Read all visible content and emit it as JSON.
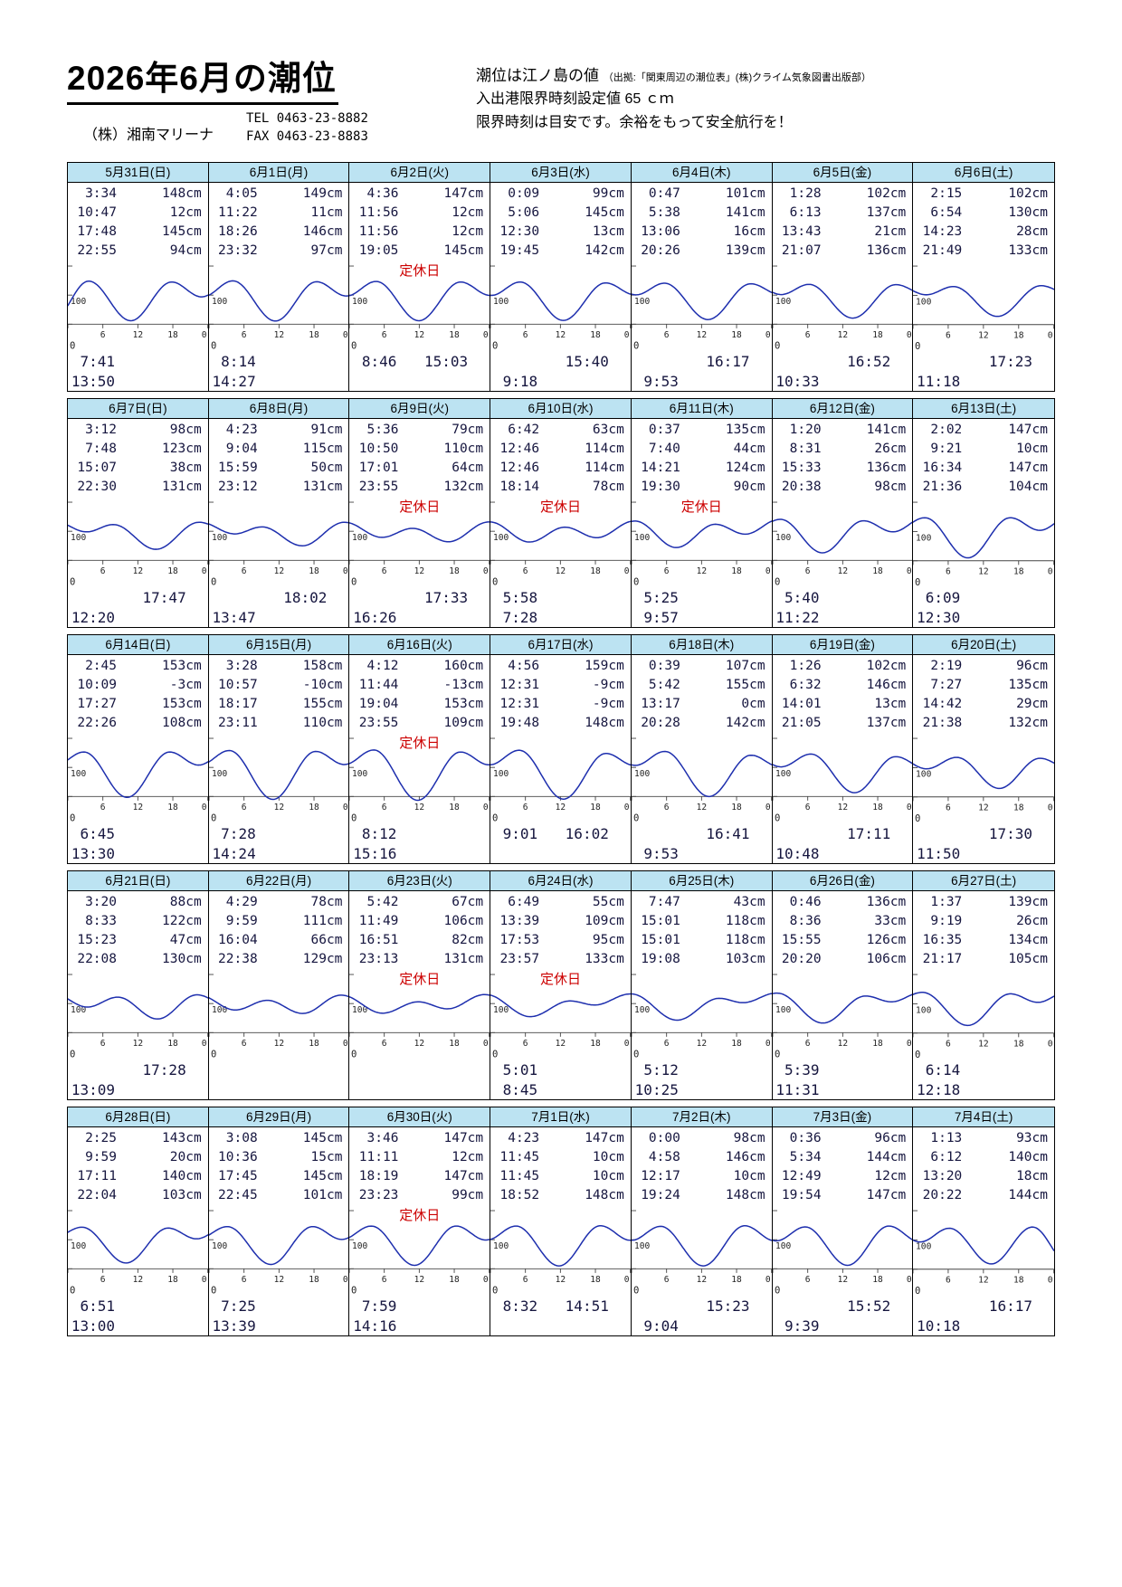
{
  "page": {
    "title": "2026年6月の潮位",
    "company": "（株）湘南マリーナ",
    "tel": "TEL 0463-23-8882",
    "fax": "FAX 0463-23-8883",
    "note1": "潮位は江ノ島の値",
    "note1_sub": "（出拠:「関東周辺の潮位表」(株)クライム気象図書出版部）",
    "note2": "入出港限界時刻設定値 65 ｃｍ",
    "note3": "限界時刻は目安です。余裕をもって安全航行を！",
    "holiday_label": "定休日",
    "axis": {
      "y100": "100",
      "y0": "0",
      "xticks": [
        "6",
        "12",
        "18",
        "0"
      ]
    }
  },
  "colors": {
    "header_bg": "#bce3f2",
    "curve": "#1e2fae",
    "holiday": "#cc0000",
    "text": "#16163f"
  },
  "weeks": [
    [
      {
        "date": "5月31日(日)",
        "holiday": false,
        "tides": [
          [
            "3:34",
            "148cm"
          ],
          [
            "10:47",
            "12cm"
          ],
          [
            "17:48",
            "145cm"
          ],
          [
            "22:55",
            "94cm"
          ]
        ],
        "limits": [
          [
            "7:41",
            ""
          ],
          [
            "13:50",
            ""
          ]
        ]
      },
      {
        "date": "6月1日(月)",
        "holiday": false,
        "tides": [
          [
            "4:05",
            "149cm"
          ],
          [
            "11:22",
            "11cm"
          ],
          [
            "18:26",
            "146cm"
          ],
          [
            "23:32",
            "97cm"
          ]
        ],
        "limits": [
          [
            "8:14",
            ""
          ],
          [
            "14:27",
            ""
          ]
        ]
      },
      {
        "date": "6月2日(火)",
        "holiday": true,
        "tides": [
          [
            "4:36",
            "147cm"
          ],
          [
            "11:56",
            "12cm"
          ],
          [
            "11:56",
            "12cm"
          ],
          [
            "19:05",
            "145cm"
          ]
        ],
        "limits": [
          [
            "8:46",
            "15:03"
          ],
          [
            "",
            ""
          ]
        ]
      },
      {
        "date": "6月3日(水)",
        "holiday": false,
        "tides": [
          [
            "0:09",
            "99cm"
          ],
          [
            "5:06",
            "145cm"
          ],
          [
            "12:30",
            "13cm"
          ],
          [
            "19:45",
            "142cm"
          ]
        ],
        "limits": [
          [
            "",
            "15:40"
          ],
          [
            "9:18",
            ""
          ]
        ]
      },
      {
        "date": "6月4日(木)",
        "holiday": false,
        "tides": [
          [
            "0:47",
            "101cm"
          ],
          [
            "5:38",
            "141cm"
          ],
          [
            "13:06",
            "16cm"
          ],
          [
            "20:26",
            "139cm"
          ]
        ],
        "limits": [
          [
            "",
            "16:17"
          ],
          [
            "9:53",
            ""
          ]
        ]
      },
      {
        "date": "6月5日(金)",
        "holiday": false,
        "tides": [
          [
            "1:28",
            "102cm"
          ],
          [
            "6:13",
            "137cm"
          ],
          [
            "13:43",
            "21cm"
          ],
          [
            "21:07",
            "136cm"
          ]
        ],
        "limits": [
          [
            "",
            "16:52"
          ],
          [
            "10:33",
            ""
          ]
        ]
      },
      {
        "date": "6月6日(土)",
        "holiday": false,
        "tides": [
          [
            "2:15",
            "102cm"
          ],
          [
            "6:54",
            "130cm"
          ],
          [
            "14:23",
            "28cm"
          ],
          [
            "21:49",
            "133cm"
          ]
        ],
        "limits": [
          [
            "",
            "17:23"
          ],
          [
            "11:18",
            ""
          ]
        ]
      }
    ],
    [
      {
        "date": "6月7日(日)",
        "holiday": false,
        "tides": [
          [
            "3:12",
            "98cm"
          ],
          [
            "7:48",
            "123cm"
          ],
          [
            "15:07",
            "38cm"
          ],
          [
            "22:30",
            "131cm"
          ]
        ],
        "limits": [
          [
            "",
            "17:47"
          ],
          [
            "12:20",
            ""
          ]
        ]
      },
      {
        "date": "6月8日(月)",
        "holiday": false,
        "tides": [
          [
            "4:23",
            "91cm"
          ],
          [
            "9:04",
            "115cm"
          ],
          [
            "15:59",
            "50cm"
          ],
          [
            "23:12",
            "131cm"
          ]
        ],
        "limits": [
          [
            "",
            "18:02"
          ],
          [
            "13:47",
            ""
          ]
        ]
      },
      {
        "date": "6月9日(火)",
        "holiday": true,
        "tides": [
          [
            "5:36",
            "79cm"
          ],
          [
            "10:50",
            "110cm"
          ],
          [
            "17:01",
            "64cm"
          ],
          [
            "23:55",
            "132cm"
          ]
        ],
        "limits": [
          [
            "",
            "17:33"
          ],
          [
            "16:26",
            ""
          ]
        ]
      },
      {
        "date": "6月10日(水)",
        "holiday": true,
        "tides": [
          [
            "6:42",
            "63cm"
          ],
          [
            "12:46",
            "114cm"
          ],
          [
            "12:46",
            "114cm"
          ],
          [
            "18:14",
            "78cm"
          ]
        ],
        "limits": [
          [
            "5:58",
            ""
          ],
          [
            "7:28",
            ""
          ]
        ]
      },
      {
        "date": "6月11日(木)",
        "holiday": true,
        "tides": [
          [
            "0:37",
            "135cm"
          ],
          [
            "7:40",
            "44cm"
          ],
          [
            "14:21",
            "124cm"
          ],
          [
            "19:30",
            "90cm"
          ]
        ],
        "limits": [
          [
            "5:25",
            ""
          ],
          [
            "9:57",
            ""
          ]
        ]
      },
      {
        "date": "6月12日(金)",
        "holiday": false,
        "tides": [
          [
            "1:20",
            "141cm"
          ],
          [
            "8:31",
            "26cm"
          ],
          [
            "15:33",
            "136cm"
          ],
          [
            "20:38",
            "98cm"
          ]
        ],
        "limits": [
          [
            "5:40",
            ""
          ],
          [
            "11:22",
            ""
          ]
        ]
      },
      {
        "date": "6月13日(土)",
        "holiday": false,
        "tides": [
          [
            "2:02",
            "147cm"
          ],
          [
            "9:21",
            "10cm"
          ],
          [
            "16:34",
            "147cm"
          ],
          [
            "21:36",
            "104cm"
          ]
        ],
        "limits": [
          [
            "6:09",
            ""
          ],
          [
            "12:30",
            ""
          ]
        ]
      }
    ],
    [
      {
        "date": "6月14日(日)",
        "holiday": false,
        "tides": [
          [
            "2:45",
            "153cm"
          ],
          [
            "10:09",
            "-3cm"
          ],
          [
            "17:27",
            "153cm"
          ],
          [
            "22:26",
            "108cm"
          ]
        ],
        "limits": [
          [
            "6:45",
            ""
          ],
          [
            "13:30",
            ""
          ]
        ]
      },
      {
        "date": "6月15日(月)",
        "holiday": false,
        "tides": [
          [
            "3:28",
            "158cm"
          ],
          [
            "10:57",
            "-10cm"
          ],
          [
            "18:17",
            "155cm"
          ],
          [
            "23:11",
            "110cm"
          ]
        ],
        "limits": [
          [
            "7:28",
            ""
          ],
          [
            "14:24",
            ""
          ]
        ]
      },
      {
        "date": "6月16日(火)",
        "holiday": true,
        "tides": [
          [
            "4:12",
            "160cm"
          ],
          [
            "11:44",
            "-13cm"
          ],
          [
            "19:04",
            "153cm"
          ],
          [
            "23:55",
            "109cm"
          ]
        ],
        "limits": [
          [
            "8:12",
            ""
          ],
          [
            "15:16",
            ""
          ]
        ]
      },
      {
        "date": "6月17日(水)",
        "holiday": false,
        "tides": [
          [
            "4:56",
            "159cm"
          ],
          [
            "12:31",
            "-9cm"
          ],
          [
            "12:31",
            "-9cm"
          ],
          [
            "19:48",
            "148cm"
          ]
        ],
        "limits": [
          [
            "9:01",
            "16:02"
          ],
          [
            "",
            ""
          ]
        ]
      },
      {
        "date": "6月18日(木)",
        "holiday": false,
        "tides": [
          [
            "0:39",
            "107cm"
          ],
          [
            "5:42",
            "155cm"
          ],
          [
            "13:17",
            "0cm"
          ],
          [
            "20:28",
            "142cm"
          ]
        ],
        "limits": [
          [
            "",
            "16:41"
          ],
          [
            "9:53",
            ""
          ]
        ]
      },
      {
        "date": "6月19日(金)",
        "holiday": false,
        "tides": [
          [
            "1:26",
            "102cm"
          ],
          [
            "6:32",
            "146cm"
          ],
          [
            "14:01",
            "13cm"
          ],
          [
            "21:05",
            "137cm"
          ]
        ],
        "limits": [
          [
            "",
            "17:11"
          ],
          [
            "10:48",
            ""
          ]
        ]
      },
      {
        "date": "6月20日(土)",
        "holiday": false,
        "tides": [
          [
            "2:19",
            "96cm"
          ],
          [
            "7:27",
            "135cm"
          ],
          [
            "14:42",
            "29cm"
          ],
          [
            "21:38",
            "132cm"
          ]
        ],
        "limits": [
          [
            "",
            "17:30"
          ],
          [
            "11:50",
            ""
          ]
        ]
      }
    ],
    [
      {
        "date": "6月21日(日)",
        "holiday": false,
        "tides": [
          [
            "3:20",
            "88cm"
          ],
          [
            "8:33",
            "122cm"
          ],
          [
            "15:23",
            "47cm"
          ],
          [
            "22:08",
            "130cm"
          ]
        ],
        "limits": [
          [
            "",
            "17:28"
          ],
          [
            "13:09",
            ""
          ]
        ]
      },
      {
        "date": "6月22日(月)",
        "holiday": false,
        "tides": [
          [
            "4:29",
            "78cm"
          ],
          [
            "9:59",
            "111cm"
          ],
          [
            "16:04",
            "66cm"
          ],
          [
            "22:38",
            "129cm"
          ]
        ],
        "limits": [
          [
            "",
            ""
          ],
          [
            "",
            ""
          ]
        ]
      },
      {
        "date": "6月23日(火)",
        "holiday": true,
        "tides": [
          [
            "5:42",
            "67cm"
          ],
          [
            "11:49",
            "106cm"
          ],
          [
            "16:51",
            "82cm"
          ],
          [
            "23:13",
            "131cm"
          ]
        ],
        "limits": [
          [
            "",
            ""
          ],
          [
            "",
            ""
          ]
        ]
      },
      {
        "date": "6月24日(水)",
        "holiday": true,
        "tides": [
          [
            "6:49",
            "55cm"
          ],
          [
            "13:39",
            "109cm"
          ],
          [
            "17:53",
            "95cm"
          ],
          [
            "23:57",
            "133cm"
          ]
        ],
        "limits": [
          [
            "5:01",
            ""
          ],
          [
            "8:45",
            ""
          ]
        ]
      },
      {
        "date": "6月25日(木)",
        "holiday": false,
        "tides": [
          [
            "7:47",
            "43cm"
          ],
          [
            "15:01",
            "118cm"
          ],
          [
            "15:01",
            "118cm"
          ],
          [
            "19:08",
            "103cm"
          ]
        ],
        "limits": [
          [
            "5:12",
            ""
          ],
          [
            "10:25",
            ""
          ]
        ]
      },
      {
        "date": "6月26日(金)",
        "holiday": false,
        "tides": [
          [
            "0:46",
            "136cm"
          ],
          [
            "8:36",
            "33cm"
          ],
          [
            "15:55",
            "126cm"
          ],
          [
            "20:20",
            "106cm"
          ]
        ],
        "limits": [
          [
            "5:39",
            ""
          ],
          [
            "11:31",
            ""
          ]
        ]
      },
      {
        "date": "6月27日(土)",
        "holiday": false,
        "tides": [
          [
            "1:37",
            "139cm"
          ],
          [
            "9:19",
            "26cm"
          ],
          [
            "16:35",
            "134cm"
          ],
          [
            "21:17",
            "105cm"
          ]
        ],
        "limits": [
          [
            "6:14",
            ""
          ],
          [
            "12:18",
            ""
          ]
        ]
      }
    ],
    [
      {
        "date": "6月28日(日)",
        "holiday": false,
        "tides": [
          [
            "2:25",
            "143cm"
          ],
          [
            "9:59",
            "20cm"
          ],
          [
            "17:11",
            "140cm"
          ],
          [
            "22:04",
            "103cm"
          ]
        ],
        "limits": [
          [
            "6:51",
            ""
          ],
          [
            "13:00",
            ""
          ]
        ]
      },
      {
        "date": "6月29日(月)",
        "holiday": false,
        "tides": [
          [
            "3:08",
            "145cm"
          ],
          [
            "10:36",
            "15cm"
          ],
          [
            "17:45",
            "145cm"
          ],
          [
            "22:45",
            "101cm"
          ]
        ],
        "limits": [
          [
            "7:25",
            ""
          ],
          [
            "13:39",
            ""
          ]
        ]
      },
      {
        "date": "6月30日(火)",
        "holiday": true,
        "tides": [
          [
            "3:46",
            "147cm"
          ],
          [
            "11:11",
            "12cm"
          ],
          [
            "18:19",
            "147cm"
          ],
          [
            "23:23",
            "99cm"
          ]
        ],
        "limits": [
          [
            "7:59",
            ""
          ],
          [
            "14:16",
            ""
          ]
        ]
      },
      {
        "date": "7月1日(水)",
        "holiday": false,
        "tides": [
          [
            "4:23",
            "147cm"
          ],
          [
            "11:45",
            "10cm"
          ],
          [
            "11:45",
            "10cm"
          ],
          [
            "18:52",
            "148cm"
          ]
        ],
        "limits": [
          [
            "8:32",
            "14:51"
          ],
          [
            "",
            ""
          ]
        ]
      },
      {
        "date": "7月2日(木)",
        "holiday": false,
        "tides": [
          [
            "0:00",
            "98cm"
          ],
          [
            "4:58",
            "146cm"
          ],
          [
            "12:17",
            "10cm"
          ],
          [
            "19:24",
            "148cm"
          ]
        ],
        "limits": [
          [
            "",
            "15:23"
          ],
          [
            "9:04",
            ""
          ]
        ]
      },
      {
        "date": "7月3日(金)",
        "holiday": false,
        "tides": [
          [
            "0:36",
            "96cm"
          ],
          [
            "5:34",
            "144cm"
          ],
          [
            "12:49",
            "12cm"
          ],
          [
            "19:54",
            "147cm"
          ]
        ],
        "limits": [
          [
            "",
            "15:52"
          ],
          [
            "9:39",
            ""
          ]
        ]
      },
      {
        "date": "7月4日(土)",
        "holiday": false,
        "tides": [
          [
            "1:13",
            "93cm"
          ],
          [
            "6:12",
            "140cm"
          ],
          [
            "13:20",
            "18cm"
          ],
          [
            "20:22",
            "144cm"
          ]
        ],
        "limits": [
          [
            "",
            "16:17"
          ],
          [
            "10:18",
            ""
          ]
        ]
      }
    ]
  ]
}
